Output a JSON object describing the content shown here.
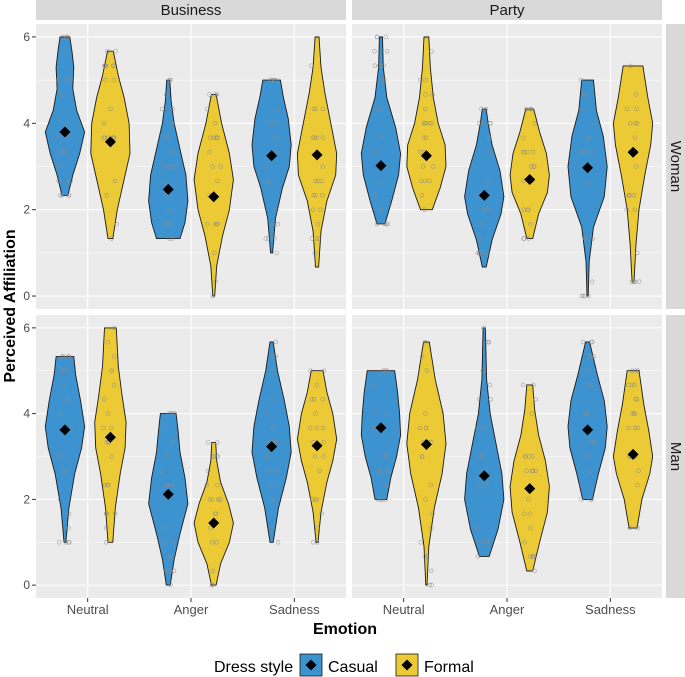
{
  "chart_data": {
    "type": "violin",
    "xlabel": "Emotion",
    "ylabel": "Perceived Affiliation",
    "ylim": [
      -0.3,
      6.3
    ],
    "yticks": [
      0,
      2,
      4,
      6
    ],
    "categories": [
      "Neutral",
      "Anger",
      "Sadness"
    ],
    "facet_columns": [
      "Business",
      "Party"
    ],
    "facet_rows": [
      "Woman",
      "Man"
    ],
    "legend": {
      "title": "Dress style",
      "position": "bottom",
      "entries": [
        {
          "name": "Casual",
          "color": "#3C93D0"
        },
        {
          "name": "Formal",
          "color": "#EBCA36"
        }
      ]
    },
    "mean_marker": "diamond",
    "panels": [
      {
        "column": "Business",
        "row": "Woman",
        "groups": [
          {
            "category": "Neutral",
            "style": "Casual",
            "min": 2.33,
            "max": 6,
            "mean": 3.8,
            "density": [
              [
                2.33,
                0.15
              ],
              [
                2.8,
                0.4
              ],
              [
                3.3,
                0.75
              ],
              [
                3.8,
                1.0
              ],
              [
                4.3,
                0.6
              ],
              [
                4.8,
                0.4
              ],
              [
                5.3,
                0.45
              ],
              [
                5.7,
                0.35
              ],
              [
                6,
                0.25
              ]
            ]
          },
          {
            "category": "Neutral",
            "style": "Formal",
            "min": 1.33,
            "max": 5.67,
            "mean": 3.57,
            "density": [
              [
                1.33,
                0.12
              ],
              [
                2,
                0.35
              ],
              [
                2.7,
                0.7
              ],
              [
                3.3,
                1.0
              ],
              [
                4,
                0.95
              ],
              [
                4.6,
                0.7
              ],
              [
                5.1,
                0.4
              ],
              [
                5.67,
                0.15
              ]
            ]
          },
          {
            "category": "Anger",
            "style": "Casual",
            "min": 1.33,
            "max": 5,
            "mean": 2.47,
            "density": [
              [
                1.33,
                0.6
              ],
              [
                1.7,
                0.85
              ],
              [
                2.2,
                1.0
              ],
              [
                2.8,
                0.9
              ],
              [
                3.4,
                0.6
              ],
              [
                4,
                0.3
              ],
              [
                4.5,
                0.15
              ],
              [
                5,
                0.08
              ]
            ]
          },
          {
            "category": "Anger",
            "style": "Formal",
            "min": 0,
            "max": 4.67,
            "mean": 2.3,
            "density": [
              [
                0,
                0.05
              ],
              [
                0.7,
                0.15
              ],
              [
                1.4,
                0.45
              ],
              [
                2,
                0.8
              ],
              [
                2.7,
                1.0
              ],
              [
                3.3,
                0.8
              ],
              [
                4,
                0.4
              ],
              [
                4.67,
                0.12
              ]
            ]
          },
          {
            "category": "Sadness",
            "style": "Casual",
            "min": 1,
            "max": 5,
            "mean": 3.25,
            "density": [
              [
                1,
                0.05
              ],
              [
                1.8,
                0.2
              ],
              [
                2.5,
                0.55
              ],
              [
                3,
                0.9
              ],
              [
                3.5,
                1.0
              ],
              [
                4.1,
                0.85
              ],
              [
                4.6,
                0.6
              ],
              [
                5,
                0.45
              ]
            ]
          },
          {
            "category": "Sadness",
            "style": "Formal",
            "min": 0.67,
            "max": 6,
            "mean": 3.27,
            "density": [
              [
                0.67,
                0.08
              ],
              [
                1.5,
                0.2
              ],
              [
                2.2,
                0.5
              ],
              [
                2.8,
                0.95
              ],
              [
                3.3,
                1.0
              ],
              [
                4,
                0.7
              ],
              [
                4.7,
                0.4
              ],
              [
                5.3,
                0.2
              ],
              [
                6,
                0.1
              ]
            ]
          }
        ]
      },
      {
        "column": "Party",
        "row": "Woman",
        "groups": [
          {
            "category": "Neutral",
            "style": "Casual",
            "min": 1.67,
            "max": 6,
            "mean": 3.02,
            "density": [
              [
                1.67,
                0.2
              ],
              [
                2.2,
                0.55
              ],
              [
                2.8,
                0.9
              ],
              [
                3.3,
                1.0
              ],
              [
                3.9,
                0.75
              ],
              [
                4.6,
                0.3
              ],
              [
                5.3,
                0.12
              ],
              [
                6,
                0.08
              ]
            ]
          },
          {
            "category": "Neutral",
            "style": "Formal",
            "min": 2,
            "max": 6,
            "mean": 3.25,
            "density": [
              [
                2,
                0.3
              ],
              [
                2.5,
                0.7
              ],
              [
                3,
                1.0
              ],
              [
                3.5,
                0.95
              ],
              [
                4,
                0.6
              ],
              [
                4.6,
                0.35
              ],
              [
                5.3,
                0.2
              ],
              [
                6,
                0.12
              ]
            ]
          },
          {
            "category": "Anger",
            "style": "Casual",
            "min": 0.67,
            "max": 4.33,
            "mean": 2.33,
            "density": [
              [
                0.67,
                0.1
              ],
              [
                1.3,
                0.4
              ],
              [
                1.9,
                0.85
              ],
              [
                2.3,
                1.0
              ],
              [
                2.9,
                0.8
              ],
              [
                3.5,
                0.4
              ],
              [
                4,
                0.2
              ],
              [
                4.33,
                0.1
              ]
            ]
          },
          {
            "category": "Anger",
            "style": "Formal",
            "min": 1.33,
            "max": 4.33,
            "mean": 2.7,
            "density": [
              [
                1.33,
                0.15
              ],
              [
                1.9,
                0.45
              ],
              [
                2.4,
                0.9
              ],
              [
                2.8,
                1.0
              ],
              [
                3.3,
                0.85
              ],
              [
                3.8,
                0.5
              ],
              [
                4.33,
                0.2
              ]
            ]
          },
          {
            "category": "Sadness",
            "style": "Casual",
            "min": 0,
            "max": 5,
            "mean": 2.97,
            "density": [
              [
                0,
                0.03
              ],
              [
                0.8,
                0.08
              ],
              [
                1.6,
                0.3
              ],
              [
                2.3,
                0.85
              ],
              [
                3,
                1.0
              ],
              [
                3.7,
                0.8
              ],
              [
                4.3,
                0.45
              ],
              [
                5,
                0.3
              ]
            ]
          },
          {
            "category": "Sadness",
            "style": "Formal",
            "min": 0.33,
            "max": 5.33,
            "mean": 3.33,
            "density": [
              [
                0.33,
                0.05
              ],
              [
                1.2,
                0.15
              ],
              [
                2,
                0.3
              ],
              [
                2.8,
                0.6
              ],
              [
                3.5,
                0.9
              ],
              [
                4,
                1.0
              ],
              [
                4.6,
                0.75
              ],
              [
                5.33,
                0.5
              ]
            ]
          }
        ]
      },
      {
        "column": "Business",
        "row": "Man",
        "groups": [
          {
            "category": "Neutral",
            "style": "Casual",
            "min": 1,
            "max": 5.33,
            "mean": 3.62,
            "density": [
              [
                1,
                0.05
              ],
              [
                1.8,
                0.2
              ],
              [
                2.6,
                0.5
              ],
              [
                3.2,
                0.85
              ],
              [
                3.7,
                1.0
              ],
              [
                4.3,
                0.8
              ],
              [
                4.9,
                0.55
              ],
              [
                5.33,
                0.45
              ]
            ]
          },
          {
            "category": "Neutral",
            "style": "Formal",
            "min": 1,
            "max": 6,
            "mean": 3.45,
            "density": [
              [
                1,
                0.12
              ],
              [
                1.8,
                0.25
              ],
              [
                2.6,
                0.5
              ],
              [
                3.2,
                0.75
              ],
              [
                3.8,
                0.8
              ],
              [
                4.4,
                0.6
              ],
              [
                5.1,
                0.4
              ],
              [
                6,
                0.3
              ]
            ]
          },
          {
            "category": "Anger",
            "style": "Casual",
            "min": 0,
            "max": 4,
            "mean": 2.12,
            "density": [
              [
                0,
                0.1
              ],
              [
                0.6,
                0.3
              ],
              [
                1.2,
                0.6
              ],
              [
                1.9,
                1.0
              ],
              [
                2.5,
                0.85
              ],
              [
                3.1,
                0.6
              ],
              [
                3.6,
                0.5
              ],
              [
                4,
                0.4
              ]
            ]
          },
          {
            "category": "Anger",
            "style": "Formal",
            "min": 0,
            "max": 3.33,
            "mean": 1.45,
            "density": [
              [
                0,
                0.12
              ],
              [
                0.5,
                0.35
              ],
              [
                1,
                0.8
              ],
              [
                1.45,
                1.0
              ],
              [
                1.9,
                0.75
              ],
              [
                2.4,
                0.35
              ],
              [
                2.9,
                0.15
              ],
              [
                3.33,
                0.1
              ]
            ]
          },
          {
            "category": "Sadness",
            "style": "Casual",
            "min": 1,
            "max": 5.67,
            "mean": 3.23,
            "density": [
              [
                1,
                0.08
              ],
              [
                1.8,
                0.35
              ],
              [
                2.5,
                0.75
              ],
              [
                3.1,
                1.0
              ],
              [
                3.7,
                0.9
              ],
              [
                4.3,
                0.65
              ],
              [
                5,
                0.3
              ],
              [
                5.67,
                0.08
              ]
            ]
          },
          {
            "category": "Sadness",
            "style": "Formal",
            "min": 1,
            "max": 5,
            "mean": 3.25,
            "density": [
              [
                1,
                0.05
              ],
              [
                1.7,
                0.2
              ],
              [
                2.4,
                0.5
              ],
              [
                2.9,
                0.8
              ],
              [
                3.4,
                1.0
              ],
              [
                4,
                0.8
              ],
              [
                4.5,
                0.5
              ],
              [
                5,
                0.3
              ]
            ]
          }
        ]
      },
      {
        "column": "Party",
        "row": "Man",
        "groups": [
          {
            "category": "Neutral",
            "style": "Casual",
            "min": 2,
            "max": 5,
            "mean": 3.67,
            "density": [
              [
                2,
                0.3
              ],
              [
                2.5,
                0.5
              ],
              [
                3,
                0.8
              ],
              [
                3.5,
                1.0
              ],
              [
                4,
                0.95
              ],
              [
                4.5,
                0.85
              ],
              [
                5,
                0.7
              ]
            ]
          },
          {
            "category": "Neutral",
            "style": "Formal",
            "min": 0,
            "max": 5.67,
            "mean": 3.28,
            "density": [
              [
                0,
                0.03
              ],
              [
                0.9,
                0.12
              ],
              [
                1.8,
                0.4
              ],
              [
                2.6,
                0.8
              ],
              [
                3.3,
                1.0
              ],
              [
                4,
                0.85
              ],
              [
                4.8,
                0.45
              ],
              [
                5.67,
                0.15
              ]
            ]
          },
          {
            "category": "Anger",
            "style": "Casual",
            "min": 0.67,
            "max": 6,
            "mean": 2.55,
            "density": [
              [
                0.67,
                0.25
              ],
              [
                1.3,
                0.7
              ],
              [
                2,
                1.0
              ],
              [
                2.6,
                0.9
              ],
              [
                3.3,
                0.6
              ],
              [
                4,
                0.3
              ],
              [
                4.8,
                0.12
              ],
              [
                6,
                0.06
              ]
            ]
          },
          {
            "category": "Anger",
            "style": "Formal",
            "min": 0.33,
            "max": 4.67,
            "mean": 2.25,
            "density": [
              [
                0.33,
                0.15
              ],
              [
                1,
                0.5
              ],
              [
                1.7,
                0.9
              ],
              [
                2.3,
                1.0
              ],
              [
                2.9,
                0.8
              ],
              [
                3.5,
                0.45
              ],
              [
                4.1,
                0.25
              ],
              [
                4.67,
                0.15
              ]
            ]
          },
          {
            "category": "Sadness",
            "style": "Casual",
            "min": 2,
            "max": 5.67,
            "mean": 3.62,
            "density": [
              [
                2,
                0.25
              ],
              [
                2.6,
                0.55
              ],
              [
                3.2,
                0.9
              ],
              [
                3.7,
                1.0
              ],
              [
                4.3,
                0.85
              ],
              [
                4.9,
                0.5
              ],
              [
                5.67,
                0.1
              ]
            ]
          },
          {
            "category": "Sadness",
            "style": "Formal",
            "min": 1.33,
            "max": 5,
            "mean": 3.05,
            "density": [
              [
                1.33,
                0.2
              ],
              [
                2,
                0.45
              ],
              [
                2.6,
                0.85
              ],
              [
                3,
                1.0
              ],
              [
                3.6,
                0.8
              ],
              [
                4.2,
                0.55
              ],
              [
                5,
                0.3
              ]
            ]
          }
        ]
      }
    ]
  }
}
